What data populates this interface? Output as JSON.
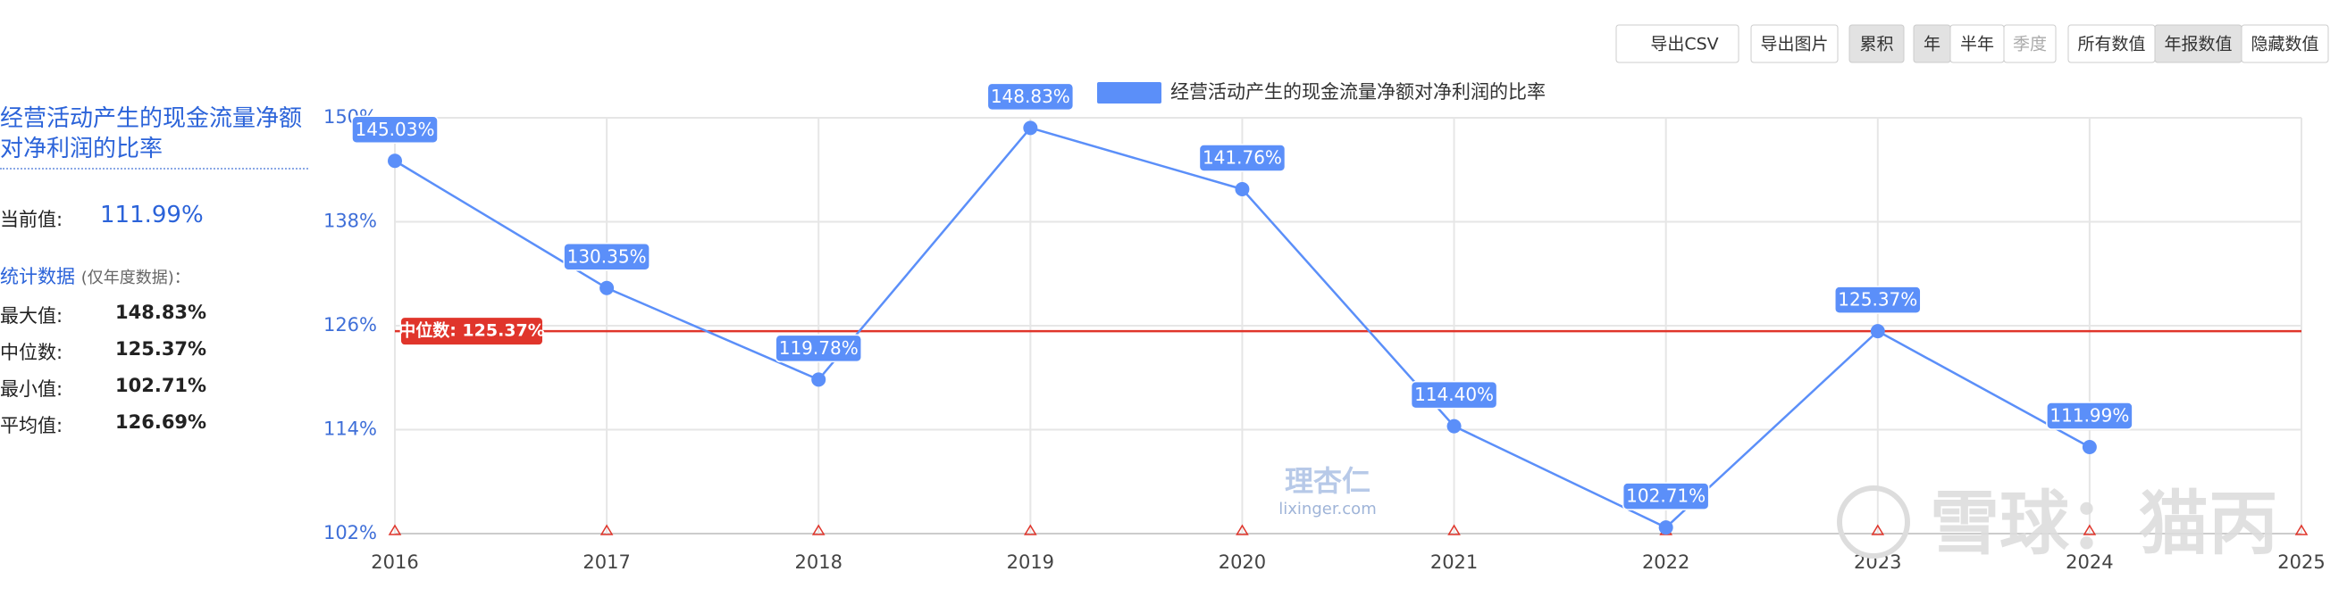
{
  "toolbar": [
    "导出CSV",
    "导出图片",
    "累积",
    "年",
    "半年",
    "季度",
    "所有数值",
    "年报数值",
    "隐藏数值"
  ],
  "sidebar": {
    "title": "经营活动产生的现金流量净额对净利润的比率",
    "current_label": "当前值:",
    "current_value": "111.99%",
    "stats_title": "统计数据",
    "stats_note": "(仅年度数据)：",
    "stats": [
      [
        "最大值:",
        "148.83%"
      ],
      [
        "中位数:",
        "125.37%"
      ],
      [
        "最小值:",
        "102.71%"
      ],
      [
        "平均值:",
        "126.69%"
      ]
    ]
  },
  "watermarks": [
    "理杏仁",
    "lixinger.com",
    "雪球：猫丙"
  ],
  "chart_data": {
    "type": "line",
    "categories": [
      "2016",
      "2017",
      "2018",
      "2019",
      "2020",
      "2021",
      "2022",
      "2023",
      "2024",
      "2025"
    ],
    "series": [
      {
        "name": "经营活动产生的现金流量净额对净利润的比率",
        "color": "#5b8ff9",
        "values": [
          145.03,
          130.35,
          119.78,
          148.83,
          141.76,
          114.4,
          102.71,
          125.37,
          111.99,
          null
        ],
        "value_labels": [
          "145.03%",
          "130.35%",
          "119.78%",
          "148.83%",
          "141.76%",
          "114.40%",
          "102.71%",
          "125.37%",
          "111.99%",
          null
        ]
      }
    ],
    "median": {
      "value": 125.37,
      "label": "中位数: 125.37%",
      "color": "#e0352b"
    },
    "ylim": [
      102,
      150
    ],
    "yticks": [
      {
        "value": 102,
        "label": "102%"
      },
      {
        "value": 114,
        "label": "114%"
      },
      {
        "value": 126,
        "label": "126%"
      },
      {
        "value": 138,
        "label": "138%"
      },
      {
        "value": 150,
        "label": "150%"
      }
    ],
    "grid": true
  }
}
